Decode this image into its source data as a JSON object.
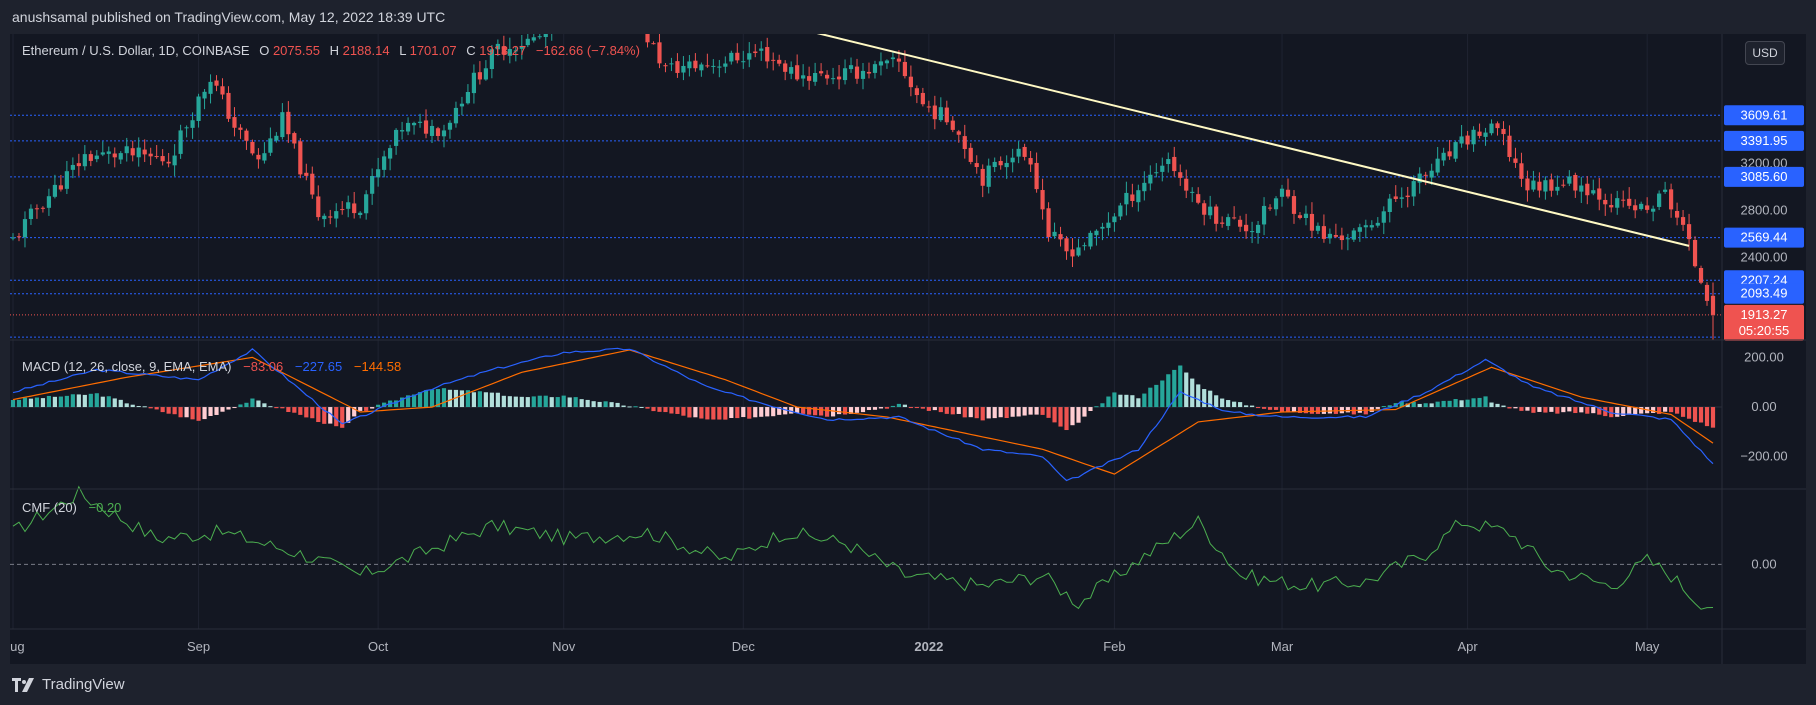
{
  "header": {
    "published_text": "anushsamal published on TradingView.com, May 12, 2022 18:39 UTC"
  },
  "footer": {
    "logo_text": "TradingView"
  },
  "price_axis": {
    "currency_button": "USD"
  },
  "legend": {
    "symbol": "Ethereum / U.S. Dollar, 1D, COINBASE",
    "open_label": "O",
    "open": "2075.55",
    "high_label": "H",
    "high": "2188.14",
    "low_label": "L",
    "low": "1701.07",
    "close_label": "C",
    "close": "1913.27",
    "change": "−162.66 (−7.84%)"
  },
  "macd_legend": {
    "label": "MACD (12, 26, close, 9, EMA, EMA)",
    "hist": "−83.06",
    "macd": "−227.65",
    "signal": "−144.58"
  },
  "cmf_legend": {
    "label": "CMF (20)",
    "value": "−0.20"
  },
  "colors": {
    "background": "#131722",
    "up": "#26a69a",
    "down": "#ef5350",
    "macd_line": "#2962ff",
    "signal_line": "#ff6d00",
    "cmf_line": "#4caf50",
    "level_label": "#2962ff",
    "trendline": "#fff9c4"
  },
  "chart_data": [
    {
      "type": "candlestick",
      "title": "Ethereum / U.S. Dollar, 1D, COINBASE",
      "x_range": [
        "2021-08-01",
        "2022-05-12"
      ],
      "ylim": [
        1700,
        4300
      ],
      "y_ticks": [
        "2400.00",
        "2800.00",
        "3200.00"
      ],
      "x_tick_labels": [
        "Aug",
        "Sep",
        "Oct",
        "Nov",
        "Dec",
        "2022",
        "Feb",
        "Mar",
        "Apr",
        "May"
      ],
      "x_tick_dates": [
        "2021-08-01",
        "2021-09-01",
        "2021-10-01",
        "2021-11-01",
        "2021-12-01",
        "2022-01-01",
        "2022-02-01",
        "2022-03-01",
        "2022-04-01",
        "2022-05-01"
      ],
      "horizontal_levels": [
        3609.61,
        3391.95,
        3085.6,
        2569.44,
        2207.24,
        2093.49,
        1724.31
      ],
      "level_labels": [
        "3609.61",
        "3391.95",
        "3085.60",
        "2569.44",
        "2207.24",
        "2093.49"
      ],
      "last_price": {
        "label": "1913.27",
        "countdown": "05:20:55",
        "value": 1913.27
      },
      "trendline": {
        "from": {
          "date": "2021-12-13",
          "price": 4312
        },
        "to": {
          "date": "2022-05-08",
          "price": 2500
        }
      },
      "close_anchors": [
        [
          "2021-08-01",
          2550
        ],
        [
          "2021-08-05",
          2820
        ],
        [
          "2021-08-13",
          3260
        ],
        [
          "2021-08-20",
          3280
        ],
        [
          "2021-08-27",
          3230
        ],
        [
          "2021-09-03",
          3940
        ],
        [
          "2021-09-07",
          3520
        ],
        [
          "2021-09-11",
          3210
        ],
        [
          "2021-09-15",
          3570
        ],
        [
          "2021-09-21",
          2770
        ],
        [
          "2021-09-28",
          2850
        ],
        [
          "2021-10-05",
          3510
        ],
        [
          "2021-10-12",
          3500
        ],
        [
          "2021-10-16",
          3850
        ],
        [
          "2021-10-21",
          4170
        ],
        [
          "2021-10-28",
          4270
        ],
        [
          "2021-11-03",
          4600
        ],
        [
          "2021-11-10",
          4720
        ],
        [
          "2021-11-18",
          4000
        ],
        [
          "2021-11-26",
          4050
        ],
        [
          "2021-12-04",
          4150
        ],
        [
          "2021-12-10",
          3950
        ],
        [
          "2021-12-17",
          3950
        ],
        [
          "2021-12-27",
          4050
        ],
        [
          "2021-12-31",
          3700
        ],
        [
          "2022-01-05",
          3550
        ],
        [
          "2022-01-10",
          3080
        ],
        [
          "2022-01-15",
          3300
        ],
        [
          "2022-01-18",
          3250
        ],
        [
          "2022-01-21",
          2600
        ],
        [
          "2022-01-24",
          2450
        ],
        [
          "2022-01-28",
          2550
        ],
        [
          "2022-02-05",
          3000
        ],
        [
          "2022-02-10",
          3250
        ],
        [
          "2022-02-14",
          2900
        ],
        [
          "2022-02-18",
          2750
        ],
        [
          "2022-02-24",
          2650
        ],
        [
          "2022-03-01",
          2950
        ],
        [
          "2022-03-08",
          2570
        ],
        [
          "2022-03-14",
          2600
        ],
        [
          "2022-03-20",
          2900
        ],
        [
          "2022-03-25",
          3100
        ],
        [
          "2022-04-02",
          3450
        ],
        [
          "2022-04-06",
          3480
        ],
        [
          "2022-04-11",
          3000
        ],
        [
          "2022-04-17",
          3050
        ],
        [
          "2022-04-21",
          3000
        ],
        [
          "2022-04-26",
          2850
        ],
        [
          "2022-05-01",
          2800
        ],
        [
          "2022-05-04",
          2950
        ],
        [
          "2022-05-07",
          2650
        ],
        [
          "2022-05-09",
          2350
        ],
        [
          "2022-05-11",
          2100
        ],
        [
          "2022-05-12",
          1913.27
        ]
      ]
    },
    {
      "type": "line",
      "title": "MACD (12, 26, close, 9, EMA, EMA)",
      "y_ticks": [
        "200.00",
        "0.00",
        "−200.00"
      ],
      "ylim": [
        -330,
        270
      ],
      "series": [
        {
          "name": "MACD",
          "role": "macd",
          "anchors": [
            [
              "2021-08-01",
              60
            ],
            [
              "2021-08-15",
              150
            ],
            [
              "2021-09-01",
              110
            ],
            [
              "2021-09-10",
              230
            ],
            [
              "2021-09-25",
              -70
            ],
            [
              "2021-10-08",
              60
            ],
            [
              "2021-10-20",
              150
            ],
            [
              "2021-11-01",
              220
            ],
            [
              "2021-11-12",
              235
            ],
            [
              "2021-11-25",
              80
            ],
            [
              "2021-12-05",
              10
            ],
            [
              "2021-12-15",
              -50
            ],
            [
              "2021-12-27",
              -40
            ],
            [
              "2022-01-10",
              -170
            ],
            [
              "2022-01-20",
              -200
            ],
            [
              "2022-01-24",
              -300
            ],
            [
              "2022-02-05",
              -170
            ],
            [
              "2022-02-12",
              60
            ],
            [
              "2022-02-20",
              -20
            ],
            [
              "2022-03-01",
              -40
            ],
            [
              "2022-03-15",
              -40
            ],
            [
              "2022-03-25",
              60
            ],
            [
              "2022-04-04",
              190
            ],
            [
              "2022-04-12",
              80
            ],
            [
              "2022-04-25",
              -20
            ],
            [
              "2022-05-05",
              -50
            ],
            [
              "2022-05-12",
              -228
            ]
          ]
        },
        {
          "name": "Signal",
          "role": "signal",
          "anchors": [
            [
              "2021-08-01",
              30
            ],
            [
              "2021-08-20",
              120
            ],
            [
              "2021-09-10",
              200
            ],
            [
              "2021-09-28",
              -20
            ],
            [
              "2021-10-10",
              0
            ],
            [
              "2021-10-25",
              140
            ],
            [
              "2021-11-12",
              230
            ],
            [
              "2021-11-28",
              110
            ],
            [
              "2021-12-10",
              0
            ],
            [
              "2021-12-25",
              -40
            ],
            [
              "2022-01-10",
              -120
            ],
            [
              "2022-01-20",
              -170
            ],
            [
              "2022-02-01",
              -270
            ],
            [
              "2022-02-15",
              -60
            ],
            [
              "2022-03-01",
              -20
            ],
            [
              "2022-03-20",
              -10
            ],
            [
              "2022-04-05",
              160
            ],
            [
              "2022-04-20",
              40
            ],
            [
              "2022-05-05",
              -30
            ],
            [
              "2022-05-12",
              -145
            ]
          ]
        }
      ]
    },
    {
      "type": "line",
      "title": "CMF (20)",
      "y_ticks": [
        "0.00"
      ],
      "ylim": [
        -0.3,
        0.35
      ],
      "series": [
        {
          "name": "CMF",
          "anchors": [
            [
              "2021-08-01",
              0.15
            ],
            [
              "2021-08-12",
              0.33
            ],
            [
              "2021-08-25",
              0.12
            ],
            [
              "2021-09-05",
              0.15
            ],
            [
              "2021-09-18",
              0.05
            ],
            [
              "2021-09-28",
              -0.05
            ],
            [
              "2021-10-08",
              0.05
            ],
            [
              "2021-10-20",
              0.18
            ],
            [
              "2021-11-02",
              0.12
            ],
            [
              "2021-11-15",
              0.15
            ],
            [
              "2021-11-28",
              0.02
            ],
            [
              "2021-12-08",
              0.15
            ],
            [
              "2021-12-18",
              0.1
            ],
            [
              "2021-12-28",
              -0.05
            ],
            [
              "2022-01-10",
              -0.1
            ],
            [
              "2022-01-20",
              -0.05
            ],
            [
              "2022-01-26",
              -0.18
            ],
            [
              "2022-02-05",
              0.02
            ],
            [
              "2022-02-15",
              0.2
            ],
            [
              "2022-02-22",
              -0.05
            ],
            [
              "2022-03-05",
              -0.1
            ],
            [
              "2022-03-15",
              -0.08
            ],
            [
              "2022-03-25",
              0.05
            ],
            [
              "2022-03-31",
              0.2
            ],
            [
              "2022-04-08",
              0.15
            ],
            [
              "2022-04-15",
              -0.02
            ],
            [
              "2022-04-25",
              -0.1
            ],
            [
              "2022-05-01",
              0.02
            ],
            [
              "2022-05-05",
              -0.05
            ],
            [
              "2022-05-09",
              -0.16
            ],
            [
              "2022-05-12",
              -0.2
            ]
          ]
        }
      ]
    }
  ]
}
